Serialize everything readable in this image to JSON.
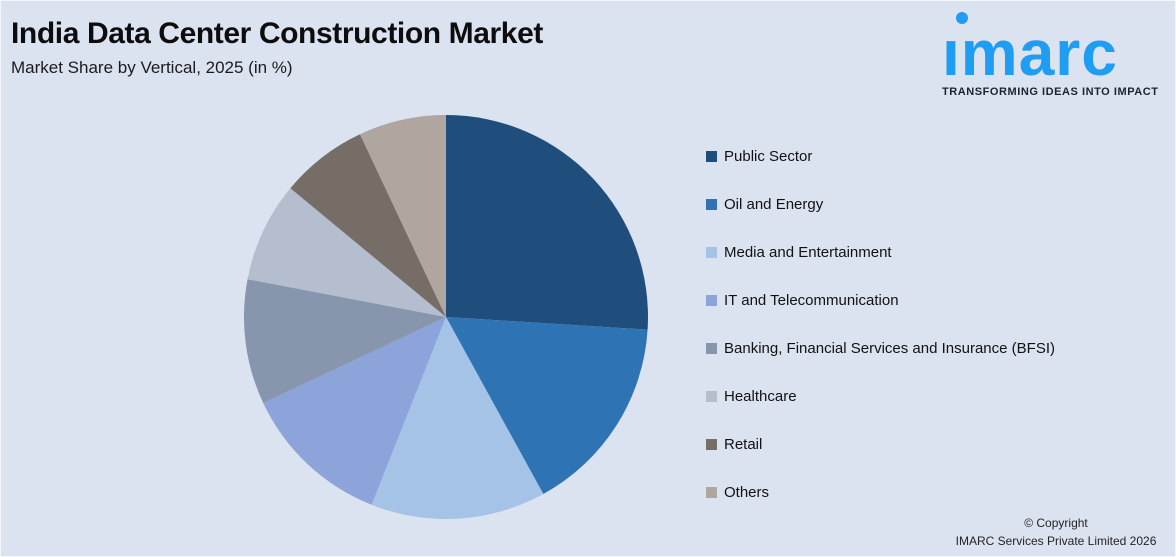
{
  "page": {
    "background": "#dbe2f0"
  },
  "header": {
    "title": "India Data Center Construction Market",
    "subtitle": "Market Share by Vertical, 2025 (in %)"
  },
  "logo": {
    "brand": "imarc",
    "tagline": "TRANSFORMING IDEAS INTO IMPACT",
    "brand_color": "#1e9df2",
    "tagline_color": "#1b2433"
  },
  "chart_data": {
    "type": "pie",
    "title": "India Data Center Construction Market",
    "subtitle": "Market Share by Vertical, 2025 (in %)",
    "unit": "%",
    "start_angle_deg": 0,
    "direction": "clockwise",
    "legend_position": "right",
    "data_labels_shown": false,
    "categories": [
      "Public Sector",
      "Oil and Energy",
      "Media and Entertainment",
      "IT and Telecommunication",
      "Banking, Financial Services and Insurance (BFSI)",
      "Healthcare",
      "Retail",
      "Others"
    ],
    "values": [
      26,
      16,
      14,
      12,
      10,
      8,
      7,
      7
    ],
    "colors": [
      "#204e7c",
      "#2e74b5",
      "#a4c3e6",
      "#8ca4d9",
      "#8795ad",
      "#b4becf",
      "#756d66",
      "#aea69f"
    ]
  },
  "footer": {
    "copyright_line1": "© Copyright",
    "copyright_line2": "IMARC Services Private Limited 2026"
  }
}
